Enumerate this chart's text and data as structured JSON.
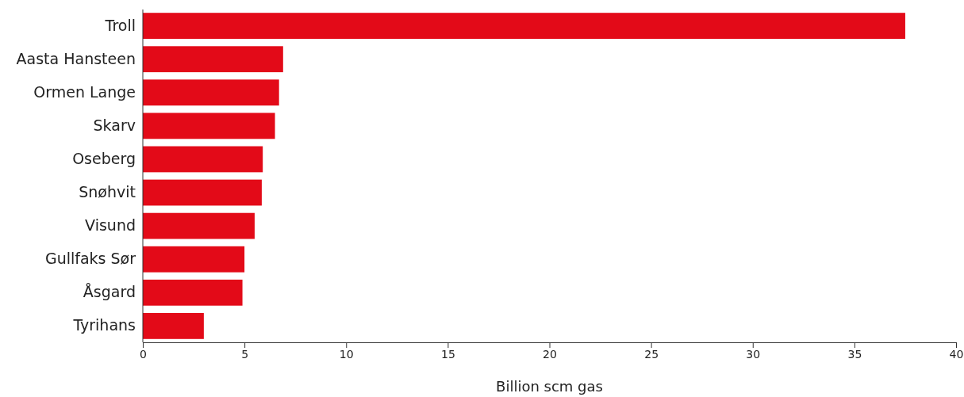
{
  "chart_data": {
    "type": "bar",
    "orientation": "horizontal",
    "xlabel": "Billion scm gas",
    "categories": [
      "Troll",
      "Aasta Hansteen",
      "Ormen Lange",
      "Skarv",
      "Oseberg",
      "Snøhvit",
      "Visund",
      "Gullfaks Sør",
      "Åsgard",
      "Tyrihans"
    ],
    "values": [
      37.5,
      6.9,
      6.7,
      6.5,
      5.9,
      5.85,
      5.5,
      5.0,
      4.9,
      3.0
    ],
    "color": "#e30a18",
    "xlim": [
      0,
      40
    ],
    "xticks": [
      0,
      5,
      10,
      15,
      20,
      25,
      30,
      35,
      40
    ],
    "grid": false
  }
}
